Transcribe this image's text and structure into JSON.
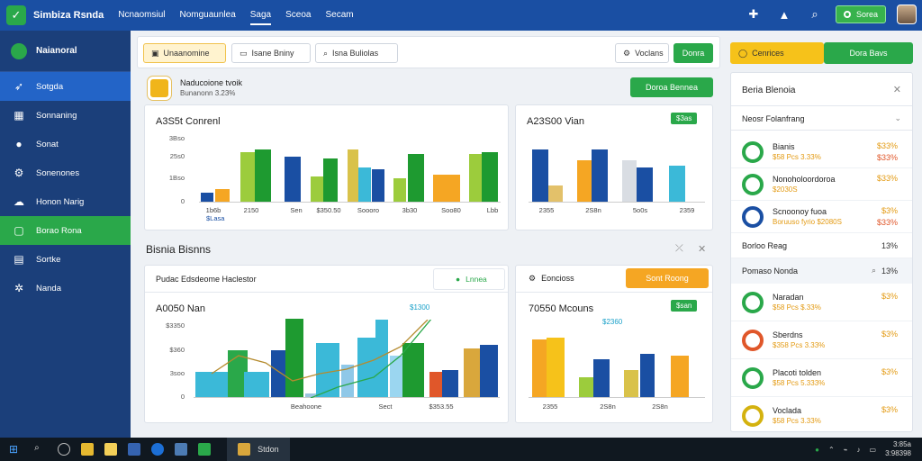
{
  "app": {
    "title": "Simbiza Rsnda"
  },
  "topnav": [
    "Ncnaomsiul",
    "Nomguaunlea",
    "Saga",
    "Sceoa",
    "Secam"
  ],
  "top_right": {
    "green_button": "Sorea"
  },
  "sidebar": {
    "header": "Naianoral",
    "items": [
      {
        "label": "Sotgda",
        "icon": "rocket-icon",
        "state": "blue"
      },
      {
        "label": "Sonnaning",
        "icon": "chart-icon",
        "state": ""
      },
      {
        "label": "Sonat",
        "icon": "circle-icon",
        "state": ""
      },
      {
        "label": "Sonenones",
        "icon": "gear-icon",
        "state": ""
      },
      {
        "label": "Honon Narig",
        "icon": "cloud-icon",
        "state": ""
      },
      {
        "label": "Borao Rona",
        "icon": "window-icon",
        "state": "green"
      },
      {
        "label": "Sortke",
        "icon": "grid-icon",
        "state": ""
      },
      {
        "label": "Nanda",
        "icon": "cog-icon",
        "state": ""
      }
    ]
  },
  "toolbar": {
    "tab1": "Unaanomine",
    "tab2": "Isane Bniny",
    "tab3": "Isna Buliolas",
    "tab4": "Voclans",
    "green_btn": "Donra"
  },
  "notice": {
    "title": "Naducoione tvoik",
    "subtitle": "Bunanonn 3.23%",
    "button": "Doroa Bennea"
  },
  "section": {
    "title": "Bisnia Bisnns"
  },
  "chart1": {
    "title": "A3S5t Conrenl",
    "yticks": [
      "3Bso",
      "25s0",
      "1Bso",
      "0"
    ],
    "xlabels": [
      "1b6b",
      "2150",
      "Sen",
      "$350.50",
      "Soooro",
      "3b30",
      "Soo80",
      "Lbb"
    ],
    "sub_label": "$Lasa"
  },
  "chart2": {
    "title": "A23S00 Vian",
    "tag": "$3as",
    "xlabels": [
      "2355",
      "2S8n",
      "5o0s",
      "2359"
    ]
  },
  "chart3": {
    "header": "Pudac Edsdeome Haclestor",
    "header_tag": "Lnnea",
    "title": "A0050 Nan",
    "annotation": "$1300",
    "yticks": [
      "$3350",
      "$360",
      "3soo",
      "0"
    ],
    "xlabels": [
      "Beahoone",
      "Sect",
      "$353.55"
    ]
  },
  "chart4": {
    "header": "Eoncioss",
    "header_btn": "Sont Roong",
    "title": "70550 Mcouns",
    "annotation": "$2360",
    "tag": "$san",
    "xlabels": [
      "2355",
      "2S8n",
      "2S8n"
    ]
  },
  "right_panel": {
    "top_yellow": "Cenrices",
    "top_green": "Dora Bavs",
    "title": "Beria Blenoia",
    "filter": "Neosr Folanfrang",
    "rows": [
      {
        "name": "Bianis",
        "sub": "$58 Pcs 3.33%",
        "val": "$33%",
        "val2": "$33%",
        "ring": "#2aa84a"
      },
      {
        "name": "Nonoholoordoroa",
        "sub": "$2030S",
        "val": "$33%",
        "val2": "",
        "ring": "#2aa84a"
      },
      {
        "name": "Scnoonoy fuoa",
        "sub": "Boruuso fyrio $2080S",
        "val": "$3%",
        "val2": "$33%",
        "ring": "#1a4fa3"
      }
    ],
    "mid_row": {
      "name": "Borloo Reag",
      "val": "13%"
    },
    "green_row": {
      "name": "Pomaso Nonda",
      "val": "13%"
    },
    "rows2": [
      {
        "name": "Naradan",
        "sub": "$58 Pcs $.33%",
        "val": "$3%",
        "ring": "#2aa84a"
      },
      {
        "name": "Sberdns",
        "sub": "$358 Pcs 3.33%",
        "val": "$3%",
        "ring": "#e0572a"
      },
      {
        "name": "Placoti tolden",
        "sub": "$58 Pcs 5.333%",
        "val": "$3%",
        "ring": "#2aa84a"
      },
      {
        "name": "Voclada",
        "sub": "$58 Pcs 3.33%",
        "val": "$3%",
        "ring": "#d4b20f"
      }
    ]
  },
  "taskbar": {
    "app_label": "Stdon",
    "clock_time": "3:85a",
    "clock_date": "3:98398"
  }
}
